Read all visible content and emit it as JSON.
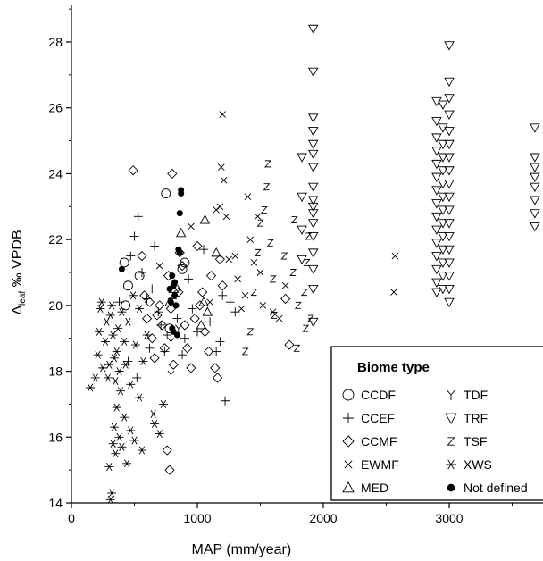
{
  "chart_data": {
    "type": "scatter",
    "xlabel": "MAP (mm/year)",
    "ylabel_main": "Δ",
    "ylabel_sub": "leaf",
    "ylabel_rest": " ‰ VPDB",
    "xlim": [
      0,
      3700
    ],
    "ylim": [
      14,
      29
    ],
    "xticks": [
      0,
      1000,
      2000,
      3000
    ],
    "yticks": [
      14,
      16,
      18,
      20,
      22,
      24,
      26,
      28
    ],
    "xtick_labels": [
      "0",
      "1000",
      "2000",
      "3000"
    ],
    "ytick_labels": [
      "14",
      "16",
      "18",
      "20",
      "22",
      "24",
      "26",
      "28"
    ],
    "grid": false,
    "legend": {
      "title": "Biome type",
      "placement": "bottom-right",
      "items": [
        {
          "marker": "circle",
          "label": "CCDF"
        },
        {
          "marker": "plus",
          "label": "CCEF"
        },
        {
          "marker": "diamond",
          "label": "CCMF"
        },
        {
          "marker": "x",
          "label": "EWMF"
        },
        {
          "marker": "triangle-up",
          "label": "MED"
        },
        {
          "marker": "y",
          "label": "TDF"
        },
        {
          "marker": "triangle-down",
          "label": "TRF"
        },
        {
          "marker": "z",
          "label": "TSF"
        },
        {
          "marker": "asterisk",
          "label": "XWS"
        },
        {
          "marker": "dot",
          "label": "Not defined"
        }
      ]
    },
    "series": [
      {
        "name": "CCDF",
        "marker": "circle",
        "points": [
          [
            420,
            21.3
          ],
          [
            450,
            20.6
          ],
          [
            430,
            20.0
          ],
          [
            540,
            20.9
          ],
          [
            750,
            23.4
          ],
          [
            820,
            20.5
          ],
          [
            880,
            21.1
          ],
          [
            780,
            19.3
          ],
          [
            900,
            21.3
          ]
        ]
      },
      {
        "name": "CCEF",
        "marker": "plus",
        "points": [
          [
            380,
            20.1
          ],
          [
            470,
            21.5
          ],
          [
            500,
            22.1
          ],
          [
            530,
            22.7
          ],
          [
            560,
            21.0
          ],
          [
            600,
            20.2
          ],
          [
            640,
            20.5
          ],
          [
            660,
            21.8
          ],
          [
            690,
            19.8
          ],
          [
            710,
            19.4
          ],
          [
            740,
            18.6
          ],
          [
            760,
            19.1
          ],
          [
            800,
            20.2
          ],
          [
            840,
            19.6
          ],
          [
            880,
            18.5
          ],
          [
            900,
            19.0
          ],
          [
            930,
            20.8
          ],
          [
            960,
            19.9
          ],
          [
            1000,
            19.2
          ],
          [
            1050,
            21.7
          ],
          [
            1100,
            19.5
          ],
          [
            1150,
            18.6
          ],
          [
            1200,
            20.3
          ],
          [
            1220,
            17.1
          ],
          [
            1260,
            20.1
          ],
          [
            1300,
            19.8
          ],
          [
            1180,
            18.9
          ],
          [
            520,
            17.8
          ],
          [
            450,
            18.3
          ],
          [
            620,
            18.7
          ]
        ]
      },
      {
        "name": "CCMF",
        "marker": "diamond",
        "points": [
          [
            490,
            24.1
          ],
          [
            800,
            24.0
          ],
          [
            560,
            21.5
          ],
          [
            580,
            20.3
          ],
          [
            600,
            19.6
          ],
          [
            640,
            19.0
          ],
          [
            660,
            18.4
          ],
          [
            700,
            20.0
          ],
          [
            720,
            19.4
          ],
          [
            740,
            18.7
          ],
          [
            770,
            20.9
          ],
          [
            790,
            19.9
          ],
          [
            810,
            18.2
          ],
          [
            850,
            20.4
          ],
          [
            880,
            21.2
          ],
          [
            900,
            19.4
          ],
          [
            920,
            18.7
          ],
          [
            950,
            18.1
          ],
          [
            980,
            19.6
          ],
          [
            1000,
            21.8
          ],
          [
            1040,
            20.4
          ],
          [
            1060,
            19.2
          ],
          [
            1090,
            18.6
          ],
          [
            1110,
            20.9
          ],
          [
            1140,
            18.1
          ],
          [
            1160,
            17.8
          ],
          [
            1180,
            21.4
          ],
          [
            1200,
            20.6
          ],
          [
            760,
            15.6
          ],
          [
            780,
            15.0
          ],
          [
            1700,
            20.2
          ],
          [
            1730,
            18.8
          ],
          [
            620,
            20.1
          ],
          [
            680,
            19.7
          ],
          [
            860,
            21.6
          ],
          [
            1020,
            20.0
          ]
        ]
      },
      {
        "name": "EWMF",
        "marker": "x",
        "points": [
          [
            1200,
            25.8
          ],
          [
            1190,
            24.2
          ],
          [
            1210,
            23.8
          ],
          [
            1180,
            23.0
          ],
          [
            1230,
            22.7
          ],
          [
            1250,
            21.4
          ],
          [
            1300,
            21.5
          ],
          [
            1320,
            20.8
          ],
          [
            1350,
            19.9
          ],
          [
            1380,
            20.3
          ],
          [
            1400,
            23.3
          ],
          [
            1420,
            22.0
          ],
          [
            1450,
            21.3
          ],
          [
            1480,
            22.7
          ],
          [
            1500,
            21.0
          ],
          [
            1520,
            20.0
          ],
          [
            1600,
            19.8
          ],
          [
            1650,
            19.6
          ],
          [
            1700,
            20.6
          ],
          [
            1100,
            20.1
          ],
          [
            1150,
            22.9
          ],
          [
            2570,
            21.5
          ],
          [
            2560,
            20.4
          ],
          [
            700,
            21.2
          ],
          [
            950,
            22.4
          ]
        ]
      },
      {
        "name": "MED",
        "marker": "triangle-up",
        "points": [
          [
            870,
            22.2
          ],
          [
            1060,
            22.6
          ],
          [
            1050,
            20.1
          ],
          [
            1080,
            19.8
          ],
          [
            1030,
            19.4
          ],
          [
            780,
            20.1
          ],
          [
            810,
            20.5
          ],
          [
            1150,
            21.6
          ]
        ]
      },
      {
        "name": "TDF",
        "marker": "y",
        "points": [
          [
            790,
            18.9
          ],
          [
            790,
            17.9
          ],
          [
            850,
            19.3
          ]
        ]
      },
      {
        "name": "TRF",
        "marker": "triangle-down",
        "points": [
          [
            1920,
            28.4
          ],
          [
            1920,
            27.1
          ],
          [
            1920,
            25.7
          ],
          [
            1920,
            25.3
          ],
          [
            1920,
            24.9
          ],
          [
            1920,
            24.6
          ],
          [
            1920,
            24.2
          ],
          [
            1920,
            23.6
          ],
          [
            1920,
            23.2
          ],
          [
            1920,
            22.8
          ],
          [
            1920,
            22.5
          ],
          [
            1920,
            21.6
          ],
          [
            1920,
            21.1
          ],
          [
            1920,
            20.5
          ],
          [
            1920,
            19.5
          ],
          [
            1920,
            23.0
          ],
          [
            1920,
            22.1
          ],
          [
            1830,
            24.5
          ],
          [
            1830,
            23.3
          ],
          [
            1830,
            22.3
          ],
          [
            1830,
            21.4
          ],
          [
            2900,
            26.2
          ],
          [
            2900,
            25.6
          ],
          [
            2900,
            25.1
          ],
          [
            2900,
            24.7
          ],
          [
            2900,
            24.3
          ],
          [
            2900,
            23.9
          ],
          [
            2900,
            23.5
          ],
          [
            2900,
            23.1
          ],
          [
            2900,
            22.7
          ],
          [
            2900,
            22.3
          ],
          [
            2900,
            21.9
          ],
          [
            2900,
            21.5
          ],
          [
            2900,
            21.1
          ],
          [
            2900,
            20.7
          ],
          [
            2900,
            20.4
          ],
          [
            2950,
            26.1
          ],
          [
            2950,
            25.4
          ],
          [
            2950,
            24.9
          ],
          [
            2950,
            24.5
          ],
          [
            2950,
            24.1
          ],
          [
            2950,
            23.7
          ],
          [
            2950,
            23.3
          ],
          [
            2950,
            22.9
          ],
          [
            2950,
            22.5
          ],
          [
            2950,
            22.1
          ],
          [
            2950,
            21.7
          ],
          [
            2950,
            21.3
          ],
          [
            2950,
            20.9
          ],
          [
            2950,
            20.5
          ],
          [
            3000,
            27.9
          ],
          [
            3000,
            26.8
          ],
          [
            3000,
            26.3
          ],
          [
            3000,
            25.8
          ],
          [
            3000,
            25.3
          ],
          [
            3000,
            24.9
          ],
          [
            3000,
            24.5
          ],
          [
            3000,
            24.1
          ],
          [
            3000,
            23.7
          ],
          [
            3000,
            23.3
          ],
          [
            3000,
            22.9
          ],
          [
            3000,
            22.5
          ],
          [
            3000,
            22.1
          ],
          [
            3000,
            21.7
          ],
          [
            3000,
            21.3
          ],
          [
            3000,
            20.9
          ],
          [
            3000,
            20.5
          ],
          [
            3000,
            20.1
          ],
          [
            3680,
            25.4
          ],
          [
            3680,
            24.5
          ],
          [
            3680,
            24.2
          ],
          [
            3680,
            23.9
          ],
          [
            3680,
            23.6
          ],
          [
            3680,
            23.2
          ],
          [
            3680,
            22.8
          ],
          [
            3680,
            22.4
          ]
        ]
      },
      {
        "name": "TSF",
        "marker": "z",
        "points": [
          [
            1380,
            18.6
          ],
          [
            1420,
            19.2
          ],
          [
            1450,
            20.4
          ],
          [
            1480,
            21.6
          ],
          [
            1500,
            22.5
          ],
          [
            1530,
            22.9
          ],
          [
            1550,
            23.6
          ],
          [
            1560,
            24.3
          ],
          [
            1580,
            21.9
          ],
          [
            1600,
            20.8
          ],
          [
            1610,
            19.7
          ],
          [
            1690,
            21.5
          ],
          [
            1770,
            22.6
          ],
          [
            1790,
            18.7
          ],
          [
            1800,
            20.0
          ],
          [
            1860,
            19.3
          ],
          [
            1870,
            21.3
          ],
          [
            1880,
            22.1
          ],
          [
            1850,
            20.4
          ],
          [
            1900,
            19.6
          ],
          [
            1760,
            21.0
          ]
        ]
      },
      {
        "name": "XWS",
        "marker": "asterisk",
        "points": [
          [
            150,
            17.5
          ],
          [
            190,
            17.8
          ],
          [
            210,
            18.5
          ],
          [
            220,
            19.2
          ],
          [
            230,
            19.9
          ],
          [
            240,
            20.1
          ],
          [
            250,
            18.1
          ],
          [
            270,
            18.9
          ],
          [
            280,
            19.5
          ],
          [
            290,
            17.8
          ],
          [
            300,
            18.2
          ],
          [
            310,
            19.7
          ],
          [
            320,
            20.0
          ],
          [
            330,
            19.1
          ],
          [
            340,
            18.4
          ],
          [
            350,
            17.7
          ],
          [
            360,
            18.6
          ],
          [
            370,
            19.3
          ],
          [
            380,
            18.0
          ],
          [
            390,
            17.4
          ],
          [
            400,
            19.8
          ],
          [
            420,
            18.9
          ],
          [
            430,
            18.2
          ],
          [
            450,
            19.5
          ],
          [
            470,
            17.6
          ],
          [
            490,
            20.3
          ],
          [
            510,
            18.8
          ],
          [
            540,
            19.9
          ],
          [
            570,
            18.3
          ],
          [
            600,
            19.1
          ],
          [
            300,
            15.1
          ],
          [
            310,
            14.1
          ],
          [
            320,
            14.3
          ],
          [
            330,
            15.8
          ],
          [
            340,
            16.3
          ],
          [
            350,
            15.5
          ],
          [
            360,
            16.9
          ],
          [
            380,
            16.0
          ],
          [
            400,
            15.7
          ],
          [
            420,
            16.6
          ],
          [
            440,
            15.2
          ],
          [
            470,
            16.2
          ],
          [
            500,
            15.9
          ],
          [
            540,
            17.2
          ],
          [
            560,
            15.6
          ],
          [
            650,
            16.7
          ],
          [
            660,
            16.4
          ],
          [
            700,
            16.1
          ],
          [
            730,
            17.0
          ]
        ]
      },
      {
        "name": "Not defined",
        "marker": "dot",
        "points": [
          [
            800,
            20.9
          ],
          [
            810,
            20.6
          ],
          [
            820,
            20.3
          ],
          [
            790,
            20.1
          ],
          [
            830,
            20.0
          ],
          [
            800,
            19.3
          ],
          [
            810,
            19.2
          ],
          [
            840,
            19.1
          ],
          [
            850,
            21.7
          ],
          [
            860,
            21.6
          ],
          [
            860,
            22.8
          ],
          [
            870,
            23.4
          ],
          [
            870,
            23.5
          ],
          [
            400,
            21.1
          ],
          [
            820,
            20.7
          ],
          [
            780,
            20.5
          ]
        ]
      }
    ]
  }
}
